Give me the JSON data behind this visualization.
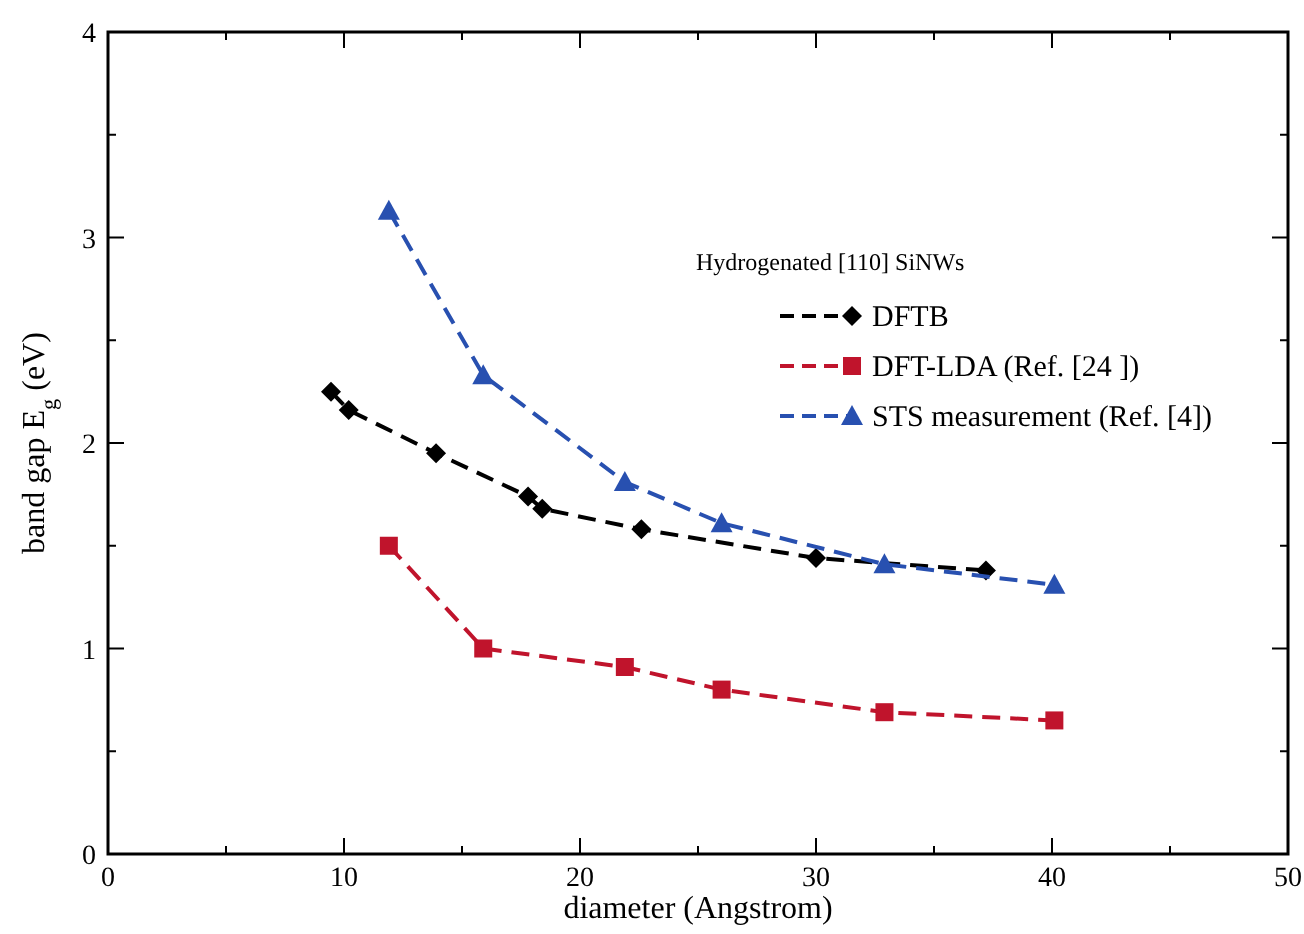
{
  "chart_data": {
    "type": "line",
    "xlabel": "diameter (Angstrom)",
    "ylabel": "band gap E$_{g}$ (eV)",
    "legend_title": "Hydrogenated [110] SiNWs",
    "xlim": [
      0,
      50
    ],
    "ylim": [
      0,
      4
    ],
    "xticks": [
      0,
      {
        "value": 5,
        "label": null
      },
      10,
      {
        "value": 15,
        "label": null
      },
      20,
      {
        "value": 25,
        "label": null
      },
      30,
      {
        "value": 35,
        "label": null
      },
      40,
      {
        "value": 45,
        "label": null
      },
      50
    ],
    "yticks": [
      0,
      {
        "value": 0.5,
        "label": null
      },
      1,
      {
        "value": 1.5,
        "label": null
      },
      2,
      {
        "value": 2.5,
        "label": null
      },
      3,
      {
        "value": 3.5,
        "label": null
      },
      4
    ],
    "grid": false,
    "legend": "right",
    "line_style": "dashed",
    "series": [
      {
        "name": "DFTB",
        "color": "#000000",
        "marker": "diamond",
        "x": [
          9.45,
          10.2,
          13.9,
          17.8,
          18.4,
          22.6,
          30.0,
          37.2
        ],
        "values": [
          2.25,
          2.16,
          1.95,
          1.74,
          1.68,
          1.58,
          1.44,
          1.38
        ]
      },
      {
        "name": "DFT-LDA (Ref. [24 ])",
        "color": "#c0142c",
        "marker": "square",
        "x": [
          11.9,
          15.9,
          21.9,
          26.0,
          32.9,
          40.1
        ],
        "values": [
          1.5,
          1.0,
          0.91,
          0.8,
          0.69,
          0.65
        ]
      },
      {
        "name": "STS measurement (Ref. [4])",
        "color": "#2850b0",
        "marker": "triangle",
        "x": [
          11.9,
          15.9,
          21.9,
          26.0,
          32.9,
          40.1
        ],
        "values": [
          3.13,
          2.33,
          1.81,
          1.61,
          1.41,
          1.31
        ]
      }
    ]
  }
}
